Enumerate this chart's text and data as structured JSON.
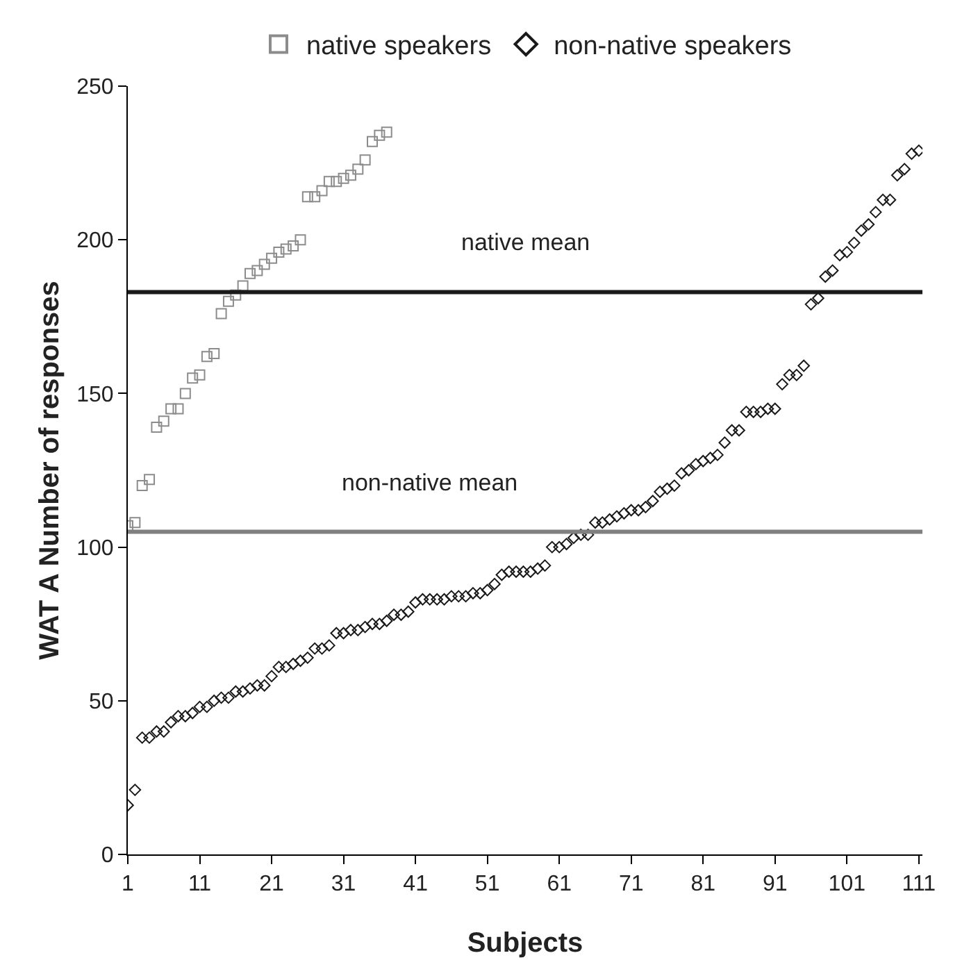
{
  "chart_data": {
    "type": "scatter",
    "xlabel": "Subjects",
    "ylabel": "WAT A Number of responses",
    "xlim": [
      1,
      111.5
    ],
    "xticks": [
      1,
      11,
      21,
      31,
      41,
      51,
      61,
      71,
      81,
      91,
      101,
      111
    ],
    "ylim": [
      0,
      250
    ],
    "yticks": [
      0,
      50,
      100,
      150,
      200,
      250
    ],
    "grid": false,
    "legend": "top",
    "series": [
      {
        "name": "native speakers",
        "color": "#8c8c8c",
        "marker": "square",
        "x": [
          1,
          2,
          3,
          4,
          5,
          6,
          7,
          8,
          9,
          10,
          11,
          12,
          13,
          14,
          15,
          16,
          17,
          18,
          19,
          20,
          21,
          22,
          23,
          24,
          25,
          26,
          27,
          28,
          29,
          30,
          31,
          32,
          33,
          34,
          35,
          36,
          37
        ],
        "values": [
          107,
          108,
          120,
          122,
          139,
          141,
          145,
          145,
          150,
          155,
          156,
          162,
          163,
          176,
          180,
          182,
          185,
          189,
          190,
          192,
          194,
          196,
          197,
          198,
          200,
          214,
          214,
          216,
          219,
          219,
          220,
          221,
          223,
          226,
          232,
          234,
          235
        ]
      },
      {
        "name": "non-native speakers",
        "color": "#1a1a1a",
        "marker": "diamond",
        "x": [
          1,
          2,
          3,
          4,
          5,
          6,
          7,
          8,
          9,
          10,
          11,
          12,
          13,
          14,
          15,
          16,
          17,
          18,
          19,
          20,
          21,
          22,
          23,
          24,
          25,
          26,
          27,
          28,
          29,
          30,
          31,
          32,
          33,
          34,
          35,
          36,
          37,
          38,
          39,
          40,
          41,
          42,
          43,
          44,
          45,
          46,
          47,
          48,
          49,
          50,
          51,
          52,
          53,
          54,
          55,
          56,
          57,
          58,
          59,
          60,
          61,
          62,
          63,
          64,
          65,
          66,
          67,
          68,
          69,
          70,
          71,
          72,
          73,
          74,
          75,
          76,
          77,
          78,
          79,
          80,
          81,
          82,
          83,
          84,
          85,
          86,
          87,
          88,
          89,
          90,
          91,
          92,
          93,
          94,
          95,
          96,
          97,
          98,
          99,
          100,
          101,
          102,
          103,
          104,
          105,
          106,
          107,
          108,
          109,
          110,
          111
        ],
        "values": [
          16,
          21,
          38,
          38,
          40,
          40,
          43,
          45,
          45,
          46,
          48,
          48,
          50,
          51,
          51,
          53,
          53,
          54,
          55,
          55,
          58,
          61,
          61,
          62,
          63,
          64,
          67,
          67,
          68,
          72,
          72,
          73,
          73,
          74,
          75,
          75,
          76,
          78,
          78,
          79,
          82,
          83,
          83,
          83,
          83,
          84,
          84,
          84,
          85,
          85,
          86,
          88,
          91,
          92,
          92,
          92,
          92,
          93,
          94,
          100,
          100,
          101,
          103,
          104,
          104,
          108,
          108,
          109,
          110,
          111,
          112,
          112,
          113,
          115,
          118,
          119,
          120,
          124,
          125,
          127,
          128,
          129,
          130,
          134,
          138,
          138,
          144,
          144,
          144,
          145,
          145,
          153,
          156,
          156,
          159,
          179,
          181,
          188,
          190,
          195,
          196,
          199,
          203,
          205,
          209,
          213,
          213,
          221,
          223,
          228,
          229
        ]
      }
    ],
    "ref_lines": [
      {
        "axis": "y",
        "value": 183,
        "label": "native mean",
        "color": "#1a1a1a"
      },
      {
        "axis": "y",
        "value": 105,
        "label": "non-native mean",
        "color": "#808080"
      }
    ]
  }
}
